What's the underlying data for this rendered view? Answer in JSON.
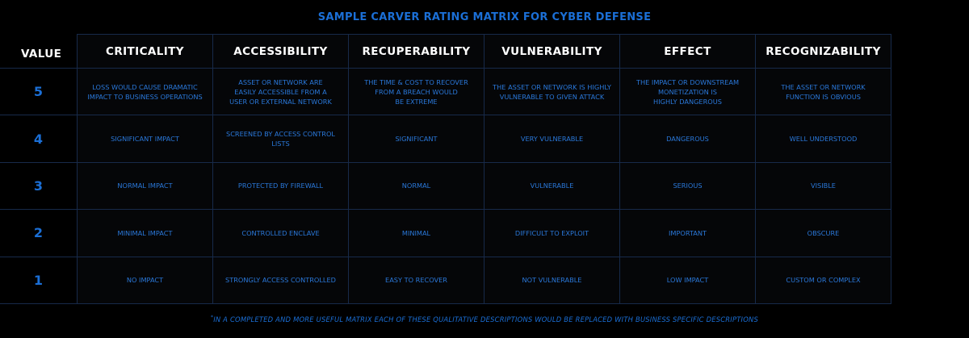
{
  "title": "SAMPLE CARVER RATING MATRIX FOR CYBER DEFENSE",
  "columns": {
    "value": "VALUE",
    "criticality": "CRITICALITY",
    "accessibility": "ACCESSIBILITY",
    "recuperability": "RECUPERABILITY",
    "vulnerability": "VULNERABILITY",
    "effect": "EFFECT",
    "recognizability": "RECOGNIZABILITY"
  },
  "rows": [
    {
      "value": "5",
      "criticality": "LOSS WOULD CAUSE DRAMATIC\nIMPACT TO BUSINESS OPERATIONS",
      "accessibility": "ASSET OR NETWORK ARE\nEASILY ACCESSIBLE FROM A\nUSER OR EXTERNAL NETWORK",
      "recuperability": "THE TIME & COST TO RECOVER\nFROM A BREACH WOULD\nBE EXTREME",
      "vulnerability": "THE ASSET OR NETWORK IS HIGHLY\nVULNERABLE TO GIVEN ATTACK",
      "effect": "THE IMPACT OR DOWNSTREAM\nMONETIZATION IS\nHIGHLY DANGEROUS",
      "recognizability": "THE ASSET OR NETWORK\nFUNCTION IS OBVIOUS"
    },
    {
      "value": "4",
      "criticality": "SIGNIFICANT IMPACT",
      "accessibility": "SCREENED BY ACCESS CONTROL LISTS",
      "recuperability": "SIGNIFICANT",
      "vulnerability": "VERY VULNERABLE",
      "effect": "DANGEROUS",
      "recognizability": "WELL UNDERSTOOD"
    },
    {
      "value": "3",
      "criticality": "NORMAL IMPACT",
      "accessibility": "PROTECTED BY FIREWALL",
      "recuperability": "NORMAL",
      "vulnerability": "VULNERABLE",
      "effect": "SERIOUS",
      "recognizability": "VISIBLE"
    },
    {
      "value": "2",
      "criticality": "MINIMAL IMPACT",
      "accessibility": "CONTROLLED ENCLAVE",
      "recuperability": "MINIMAL",
      "vulnerability": "DIFFICULT TO EXPLOIT",
      "effect": "IMPORTANT",
      "recognizability": "OBSCURE"
    },
    {
      "value": "1",
      "criticality": "NO IMPACT",
      "accessibility": "STRONGLY ACCESS CONTROLLED",
      "recuperability": "EASY TO RECOVER",
      "vulnerability": "NOT VULNERABLE",
      "effect": "LOW IMPACT",
      "recognizability": "CUSTOM OR COMPLEX"
    }
  ],
  "footnote": {
    "marker": "*",
    "text": "IN A COMPLETED AND MORE USEFUL MATRIX EACH OF THESE QUALITATIVE DESCRIPTIONS WOULD BE REPLACED WITH BUSINESS SPECIFIC DESCRIPTIONS"
  },
  "colors": {
    "background": "#000000",
    "accent": "#1b6fd6",
    "header_text": "#ffffff",
    "grid": "#172a4a"
  }
}
